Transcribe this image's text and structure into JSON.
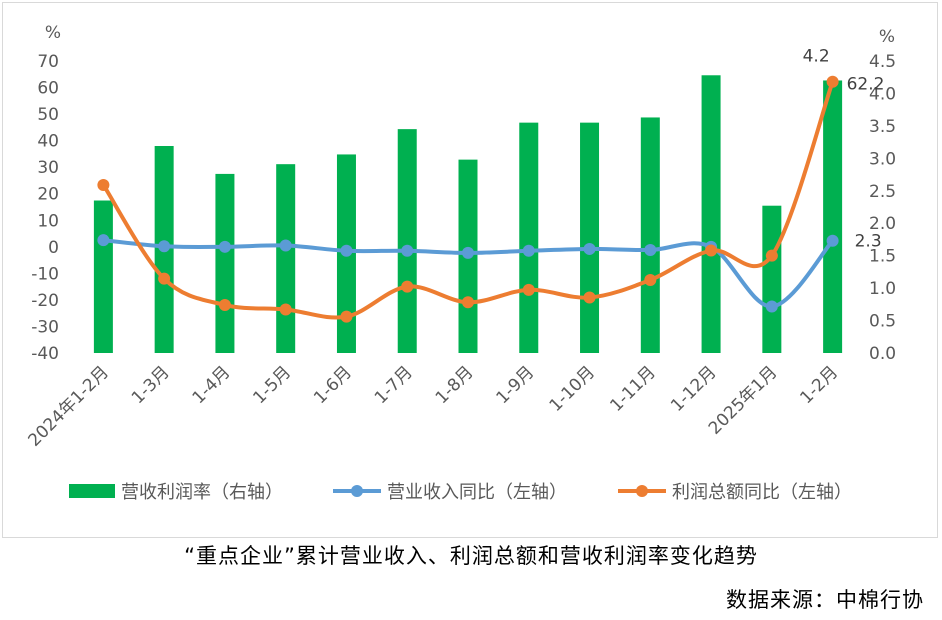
{
  "chart_data": {
    "type": "bar+line",
    "categories": [
      "2024年1-2月",
      "1-3月",
      "1-4月",
      "1-5月",
      "1-6月",
      "1-7月",
      "1-8月",
      "1-9月",
      "1-10月",
      "1-11月",
      "1-12月",
      "2025年1月",
      "1-2月"
    ],
    "left_axis": {
      "unit": "%",
      "ylim": [
        -40,
        70
      ],
      "ticks": [
        "70",
        "60",
        "50",
        "40",
        "30",
        "20",
        "10",
        "0",
        "-10",
        "-20",
        "-30",
        "-40"
      ]
    },
    "right_axis": {
      "unit": "%",
      "ylim": [
        0,
        4.5
      ],
      "ticks": [
        "4.5",
        "4.0",
        "3.5",
        "3.0",
        "2.5",
        "2.0",
        "1.5",
        "1.0",
        "0.5",
        "0.0"
      ]
    },
    "series": [
      {
        "name": "营业收入同比（左轴）",
        "type": "line",
        "axis": "left",
        "color": "#5b9bd5",
        "values": [
          2.5,
          0.2,
          0.0,
          0.5,
          -1.5,
          -1.5,
          -2.3,
          -1.5,
          -0.8,
          -1.2,
          0.0,
          -22.5,
          2.3
        ]
      },
      {
        "name": "利润总额同比（左轴）",
        "type": "line",
        "axis": "left",
        "color": "#ed7d31",
        "values": [
          23.3,
          -12.0,
          -21.9,
          -23.6,
          -26.3,
          -15.0,
          -20.9,
          -16.2,
          -19.1,
          -12.5,
          -1.4,
          -3.3,
          62.2
        ]
      },
      {
        "name": "营收利润率（右轴）",
        "type": "bar",
        "axis": "right",
        "color": "#00b050",
        "values": [
          2.35,
          3.19,
          2.76,
          2.91,
          3.06,
          3.45,
          2.98,
          3.55,
          3.55,
          3.63,
          4.28,
          2.27,
          4.2
        ]
      }
    ],
    "data_labels": {
      "bar_last": "4.2",
      "profit_last": "62.2",
      "revenue_last": "2.3"
    },
    "legend": "bottom"
  },
  "caption": {
    "title": "“重点企业”累计营业收入、利润总额和营收利润率变化趋势",
    "source": "数据来源：中棉行协"
  }
}
